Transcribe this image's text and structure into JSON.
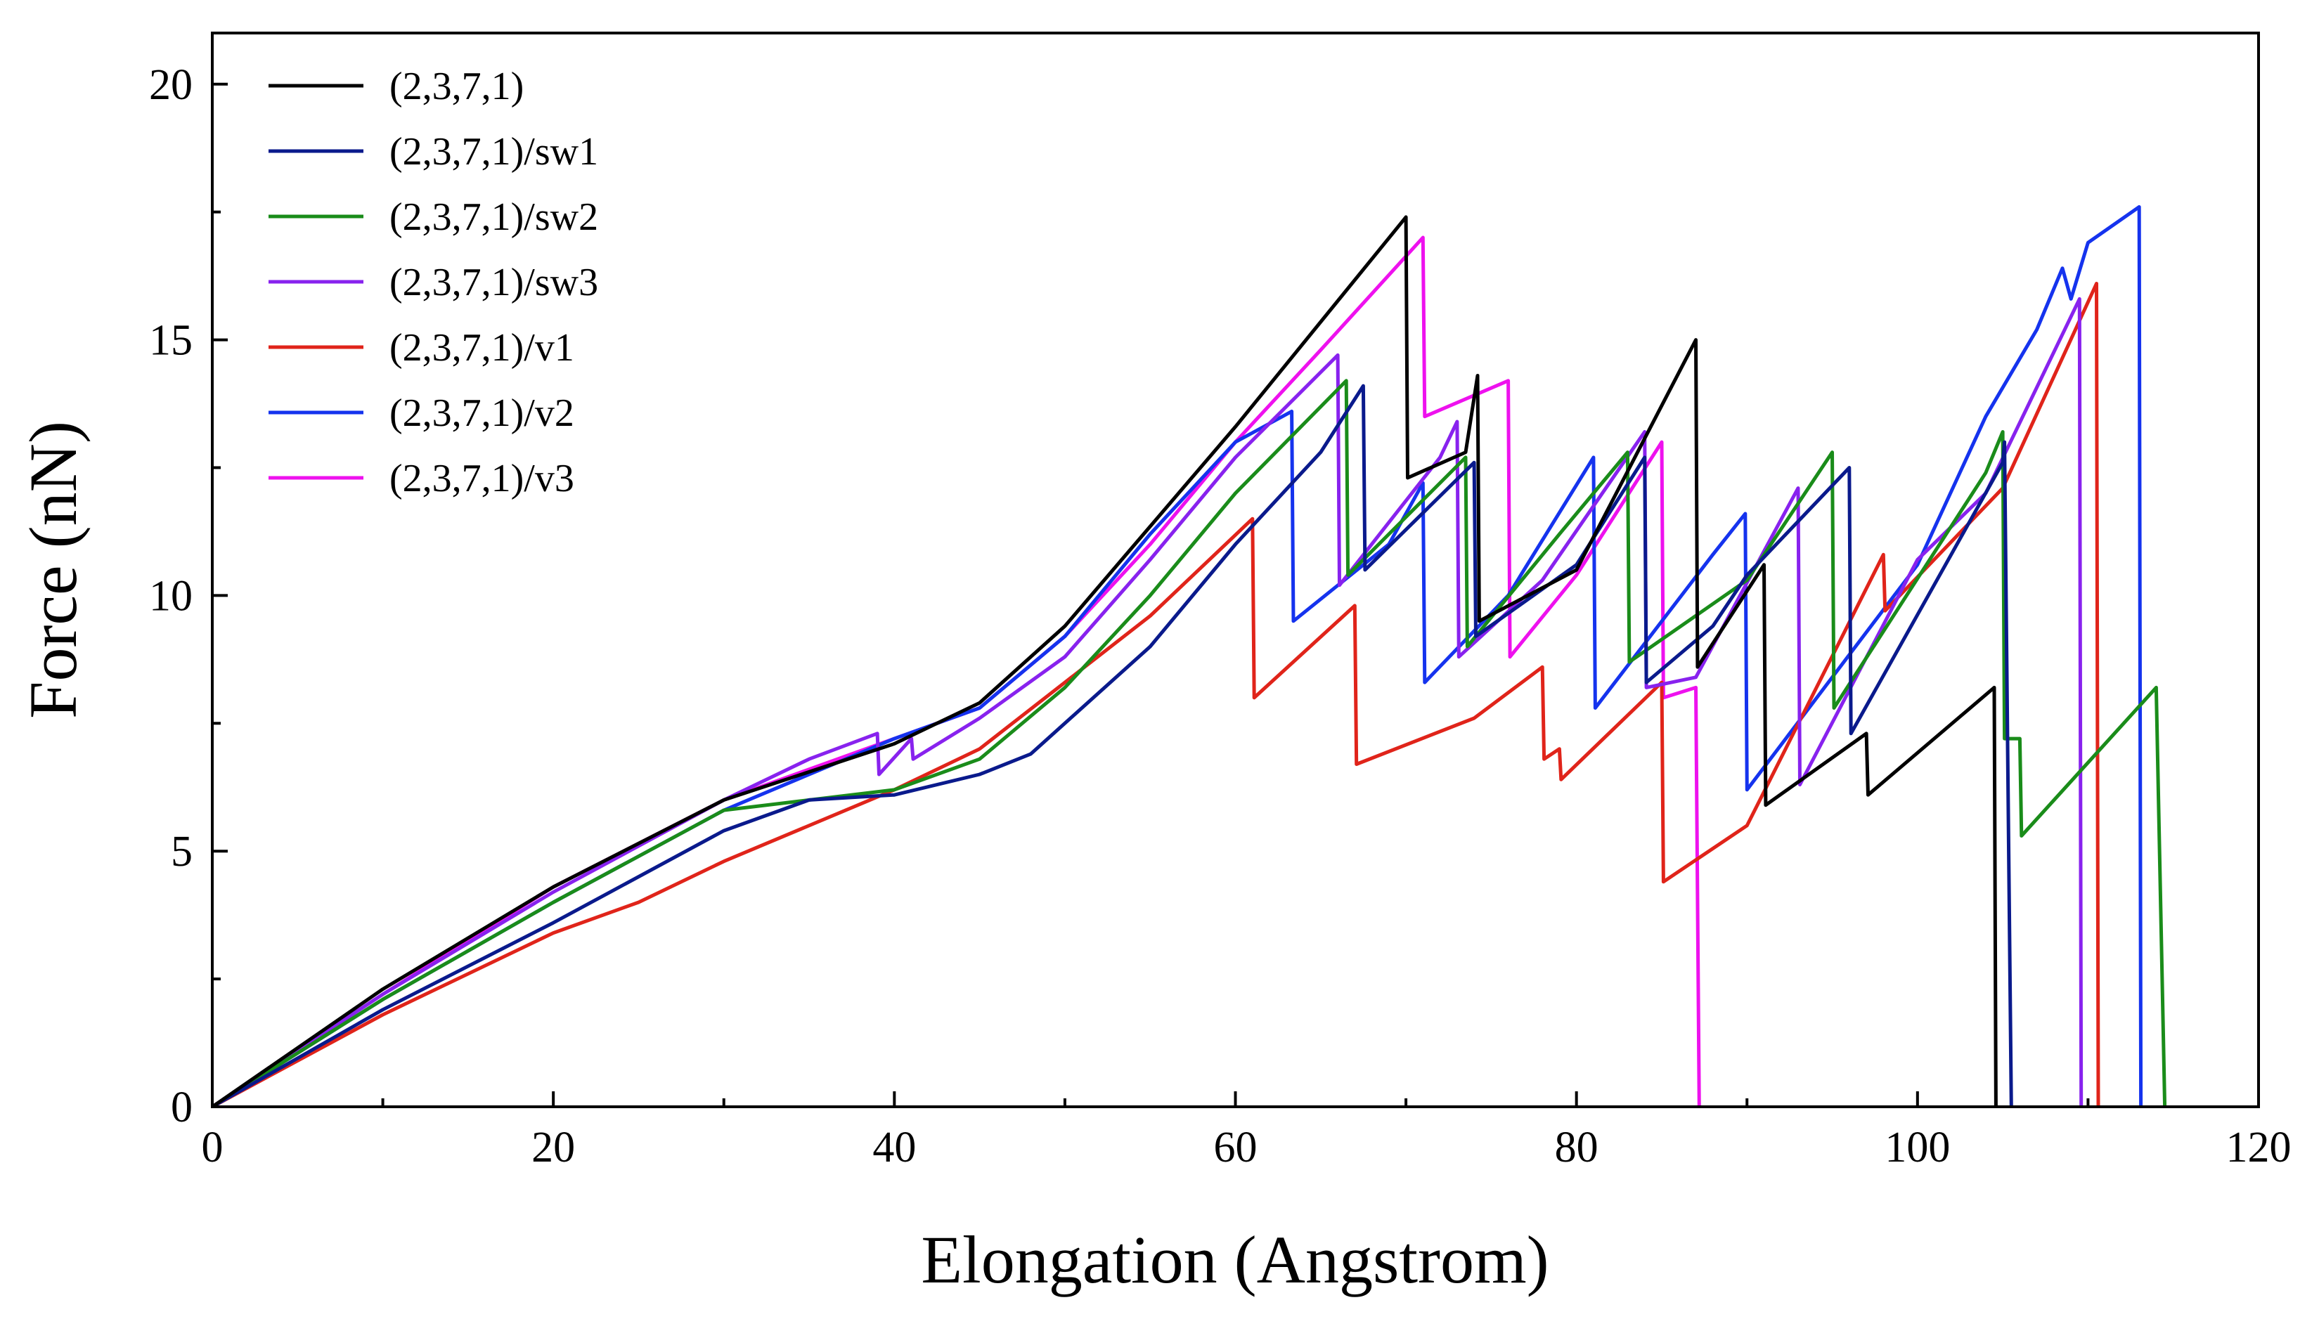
{
  "chart_data": {
    "type": "line",
    "title": "",
    "xlabel": "Elongation (Angstrom)",
    "ylabel": "Force (nN)",
    "xlim": [
      0,
      120
    ],
    "ylim": [
      0,
      21
    ],
    "xticks": [
      0,
      20,
      40,
      60,
      80,
      100,
      120
    ],
    "yticks": [
      0,
      5,
      10,
      15,
      20
    ],
    "grid": false,
    "legend_position": "top-left",
    "series": [
      {
        "name": "(2,3,7,1)",
        "color": "#000000",
        "x": [
          0,
          10,
          20,
          30,
          40,
          45,
          50,
          60,
          70,
          70.1,
          73.5,
          74.2,
          74.3,
          80,
          87,
          87.1,
          91,
          91.1,
          97,
          97.1,
          104.5,
          104.6
        ],
        "y": [
          0,
          2.3,
          4.3,
          6.0,
          7.1,
          7.9,
          9.4,
          13.3,
          17.4,
          12.3,
          12.8,
          14.3,
          9.5,
          10.5,
          15.0,
          8.6,
          10.6,
          5.9,
          7.3,
          6.1,
          8.2,
          0
        ]
      },
      {
        "name": "(2,3,7,1)/sw1",
        "color": "#0a1a8c",
        "x": [
          0,
          10,
          20,
          30,
          35,
          40,
          45,
          48,
          55,
          60,
          65,
          67.5,
          67.6,
          74,
          74.1,
          80,
          84,
          84.1,
          88,
          90,
          96,
          96.1,
          105,
          105.1,
          105.5
        ],
        "y": [
          0,
          1.9,
          3.6,
          5.4,
          6.0,
          6.1,
          6.5,
          6.9,
          9.0,
          11.0,
          12.8,
          14.1,
          10.5,
          12.6,
          9.2,
          10.6,
          12.7,
          8.3,
          9.4,
          10.4,
          12.5,
          7.3,
          12.6,
          13.0,
          0
        ]
      },
      {
        "name": "(2,3,7,1)/sw2",
        "color": "#1a8c1a",
        "x": [
          0,
          10,
          20,
          30,
          40,
          45,
          50,
          55,
          60,
          66.5,
          66.6,
          73.5,
          73.6,
          79,
          83,
          83.1,
          90,
          95,
          95.1,
          104,
          105,
          105.1,
          106,
          106.1,
          114,
          114.5
        ],
        "y": [
          0,
          2.1,
          4.0,
          5.8,
          6.2,
          6.8,
          8.2,
          10.0,
          12.0,
          14.2,
          10.4,
          12.7,
          9.0,
          11.2,
          12.8,
          8.7,
          10.3,
          12.8,
          7.8,
          12.4,
          13.2,
          7.2,
          7.2,
          5.3,
          8.2,
          0
        ]
      },
      {
        "name": "(2,3,7,1)/sw3",
        "color": "#8822ee",
        "x": [
          0,
          10,
          20,
          30,
          35,
          39,
          39.1,
          41,
          41.1,
          45,
          50,
          55,
          60,
          66,
          66.1,
          72,
          73,
          73.1,
          78,
          84,
          84.1,
          87,
          93,
          93.1,
          100,
          104,
          109.5,
          109.6
        ],
        "y": [
          0,
          2.2,
          4.2,
          6.0,
          6.8,
          7.3,
          6.5,
          7.2,
          6.8,
          7.6,
          8.8,
          10.7,
          12.7,
          14.7,
          10.2,
          12.7,
          13.4,
          8.8,
          10.3,
          13.2,
          8.2,
          8.4,
          12.1,
          6.3,
          10.7,
          12.0,
          15.8,
          0
        ]
      },
      {
        "name": "(2,3,7,1)/v1",
        "color": "#e0241a",
        "x": [
          0,
          10,
          20,
          25,
          30,
          40,
          45,
          50,
          55,
          61,
          61.1,
          67,
          67.1,
          74,
          78,
          78.1,
          79,
          79.1,
          85,
          85.1,
          90,
          98,
          98.1,
          105,
          110.5,
          110.6
        ],
        "y": [
          0,
          1.8,
          3.4,
          4.0,
          4.8,
          6.2,
          7.0,
          8.3,
          9.6,
          11.5,
          8.0,
          9.8,
          6.7,
          7.6,
          8.6,
          6.8,
          7.0,
          6.4,
          8.3,
          4.4,
          5.5,
          10.8,
          9.7,
          12.1,
          16.1,
          0
        ]
      },
      {
        "name": "(2,3,7,1)/v2",
        "color": "#1533ee",
        "x": [
          0,
          10,
          20,
          30,
          40,
          45,
          50,
          55,
          60,
          63.3,
          63.4,
          69,
          71,
          71.1,
          76,
          81,
          81.1,
          88,
          89.9,
          90,
          100,
          104,
          107,
          108.5,
          109,
          110,
          113,
          113.1
        ],
        "y": [
          0,
          2.1,
          4.0,
          5.8,
          7.2,
          7.8,
          9.2,
          11.2,
          13.0,
          13.6,
          9.5,
          11.0,
          12.2,
          8.3,
          10.0,
          12.7,
          7.8,
          10.8,
          11.6,
          6.2,
          10.6,
          13.5,
          15.2,
          16.4,
          15.8,
          16.9,
          17.6,
          0
        ]
      },
      {
        "name": "(2,3,7,1)/v3",
        "color": "#ee11ee",
        "x": [
          0,
          10,
          20,
          30,
          40,
          45,
          50,
          55,
          60,
          65,
          71,
          71.1,
          76,
          76.1,
          80,
          85,
          85.1,
          87,
          87.2
        ],
        "y": [
          0,
          2.2,
          4.3,
          6.0,
          7.2,
          7.8,
          9.2,
          11.0,
          13.0,
          14.8,
          17.0,
          13.5,
          14.2,
          8.8,
          10.4,
          13.0,
          8.0,
          8.2,
          0
        ]
      }
    ]
  }
}
